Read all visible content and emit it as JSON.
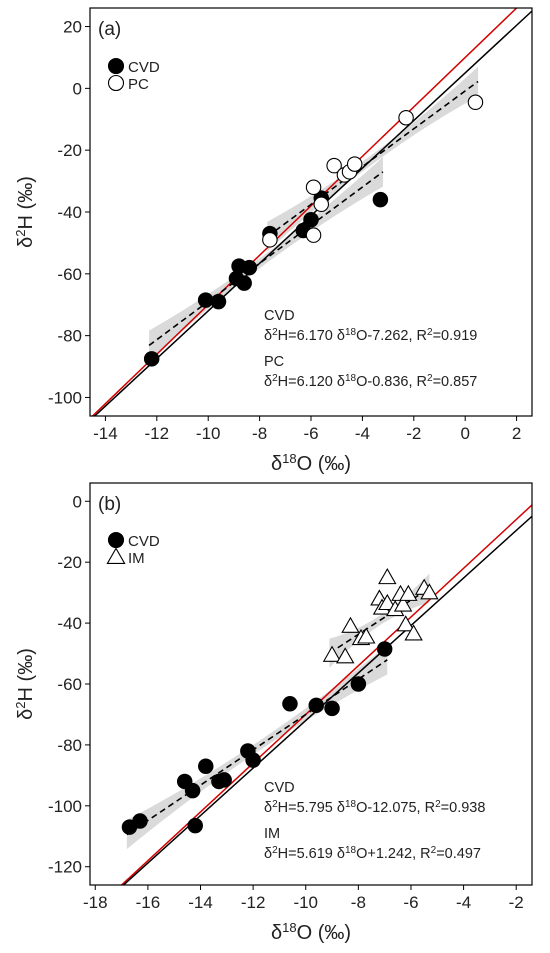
{
  "colors": {
    "one_to_one": "#d40000",
    "fit": "#000000",
    "band": "#d4d4d4",
    "frame": "#000000"
  },
  "chart_data": [
    {
      "type": "scatter",
      "panel_label": "(a)",
      "xlabel": {
        "main": "δ",
        "sup": "18",
        "rest": "O (‰)"
      },
      "ylabel": {
        "main": "δ",
        "sup": "2",
        "rest": "H (‰)"
      },
      "xlim": [
        -14.6,
        2.6
      ],
      "ylim": [
        -106,
        26
      ],
      "xticks": [
        -14,
        -12,
        -10,
        -8,
        -6,
        -4,
        -2,
        0,
        2
      ],
      "yticks": [
        20,
        0,
        -20,
        -40,
        -60,
        -80,
        -100
      ],
      "legend_position": "top-left",
      "reference_lines": [
        {
          "name": "red-line",
          "slope": 8,
          "intercept": 10,
          "color": "#d40000"
        },
        {
          "name": "black-line",
          "slope": 7.7,
          "intercept": 5,
          "color": "#000000"
        }
      ],
      "series": [
        {
          "name": "CVD",
          "marker": "circle-filled",
          "points": [
            [
              -12.2,
              -87.5
            ],
            [
              -10.1,
              -68.5
            ],
            [
              -9.6,
              -69
            ],
            [
              -8.9,
              -61.5
            ],
            [
              -8.8,
              -57.5
            ],
            [
              -8.6,
              -63
            ],
            [
              -8.4,
              -58
            ],
            [
              -7.6,
              -47
            ],
            [
              -6.3,
              -46
            ],
            [
              -6.0,
              -42.5
            ],
            [
              -5.6,
              -35.5
            ],
            [
              -3.3,
              -36
            ]
          ],
          "fit": {
            "x": [
              -12.3,
              -3.2
            ],
            "slope": 6.17,
            "intercept": -7.262
          }
        },
        {
          "name": "PC",
          "marker": "circle-open",
          "points": [
            [
              -7.6,
              -49
            ],
            [
              -5.9,
              -32
            ],
            [
              -5.9,
              -47.5
            ],
            [
              -5.6,
              -37.5
            ],
            [
              -5.1,
              -25
            ],
            [
              -4.7,
              -28
            ],
            [
              -4.5,
              -27
            ],
            [
              -4.3,
              -24.5
            ],
            [
              -2.3,
              -9.5
            ],
            [
              0.4,
              -4.5
            ]
          ],
          "fit": {
            "x": [
              -7.7,
              0.5
            ],
            "slope": 6.12,
            "intercept": -0.836
          }
        }
      ],
      "annotations": [
        {
          "name": "CVD",
          "coef": "6.170",
          "rest": "O-7.262, R",
          "r2": "0.919"
        },
        {
          "name": "PC",
          "coef": "6.120",
          "rest": "O-0.836, R",
          "r2": "0.857"
        }
      ]
    },
    {
      "type": "scatter",
      "panel_label": "(b)",
      "xlabel": {
        "main": "δ",
        "sup": "18",
        "rest": "O (‰)"
      },
      "ylabel": {
        "main": "δ",
        "sup": "2",
        "rest": "H (‰)"
      },
      "xlim": [
        -18.2,
        -1.4
      ],
      "ylim": [
        -126,
        6
      ],
      "xticks": [
        -18,
        -16,
        -14,
        -12,
        -10,
        -8,
        -6,
        -4,
        -2
      ],
      "yticks": [
        0,
        -20,
        -40,
        -60,
        -80,
        -100,
        -120
      ],
      "legend_position": "top-left",
      "reference_lines": [
        {
          "name": "red-line",
          "slope": 8,
          "intercept": 10,
          "color": "#d40000"
        },
        {
          "name": "black-line",
          "slope": 7.8,
          "intercept": 6,
          "color": "#000000"
        }
      ],
      "series": [
        {
          "name": "CVD",
          "marker": "circle-filled",
          "points": [
            [
              -16.7,
              -107
            ],
            [
              -16.3,
              -105
            ],
            [
              -14.6,
              -92
            ],
            [
              -14.3,
              -95
            ],
            [
              -14.2,
              -106.5
            ],
            [
              -13.8,
              -87
            ],
            [
              -13.3,
              -92
            ],
            [
              -13.1,
              -91.5
            ],
            [
              -12.2,
              -82
            ],
            [
              -12.0,
              -85
            ],
            [
              -10.6,
              -66.5
            ],
            [
              -9.6,
              -67
            ],
            [
              -9.0,
              -68
            ],
            [
              -8.0,
              -60
            ],
            [
              -7.0,
              -48.5
            ]
          ],
          "fit": {
            "x": [
              -16.8,
              -6.9
            ],
            "slope": 5.795,
            "intercept": -12.075
          }
        },
        {
          "name": "IM",
          "marker": "triangle-open",
          "points": [
            [
              -9.0,
              -50.5
            ],
            [
              -8.5,
              -51
            ],
            [
              -8.3,
              -41
            ],
            [
              -7.9,
              -45
            ],
            [
              -7.7,
              -44.5
            ],
            [
              -7.2,
              -32
            ],
            [
              -7.1,
              -35
            ],
            [
              -6.9,
              -33.5
            ],
            [
              -6.9,
              -25
            ],
            [
              -6.6,
              -35.5
            ],
            [
              -6.4,
              -30.5
            ],
            [
              -6.3,
              -34
            ],
            [
              -6.2,
              -40.5
            ],
            [
              -6.1,
              -30.5
            ],
            [
              -5.9,
              -43.5
            ],
            [
              -5.5,
              -28.5
            ],
            [
              -5.3,
              -30
            ]
          ],
          "fit": {
            "x": [
              -9.1,
              -5.3
            ],
            "slope": 5.619,
            "intercept": 1.242
          }
        }
      ],
      "annotations": [
        {
          "name": "CVD",
          "coef": "5.795",
          "rest": "O-12.075, R",
          "r2": "0.938"
        },
        {
          "name": "IM",
          "coef": "5.619",
          "rest": "O+1.242, R",
          "r2": "0.497"
        }
      ]
    }
  ]
}
